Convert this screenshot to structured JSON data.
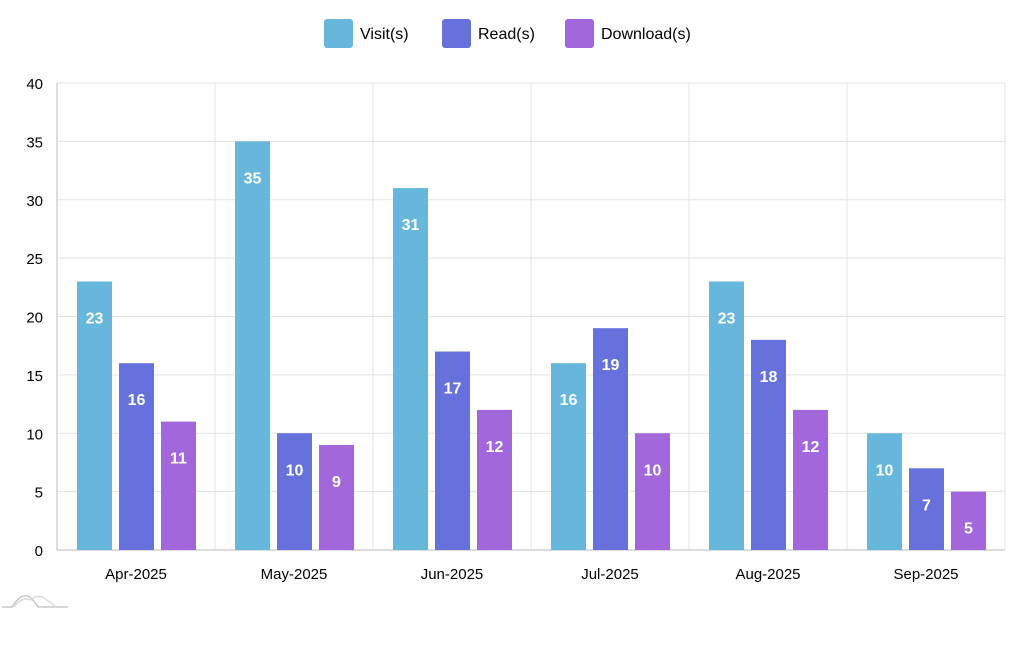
{
  "chart_data": {
    "type": "bar",
    "title": "",
    "xlabel": "",
    "ylabel": "",
    "ylim": [
      0,
      40
    ],
    "yticks": [
      0,
      5,
      10,
      15,
      20,
      25,
      30,
      35,
      40
    ],
    "grid": true,
    "legend_position": "top-center",
    "categories": [
      "Apr-2025",
      "May-2025",
      "Jun-2025",
      "Jul-2025",
      "Aug-2025",
      "Sep-2025"
    ],
    "series": [
      {
        "name": "Visit(s)",
        "color": "#67b7dc",
        "values": [
          23,
          35,
          31,
          16,
          23,
          10
        ]
      },
      {
        "name": "Read(s)",
        "color": "#6771dc",
        "values": [
          16,
          10,
          17,
          19,
          18,
          7
        ]
      },
      {
        "name": "Download(s)",
        "color": "#a367dc",
        "values": [
          11,
          9,
          12,
          10,
          12,
          5
        ]
      }
    ]
  }
}
